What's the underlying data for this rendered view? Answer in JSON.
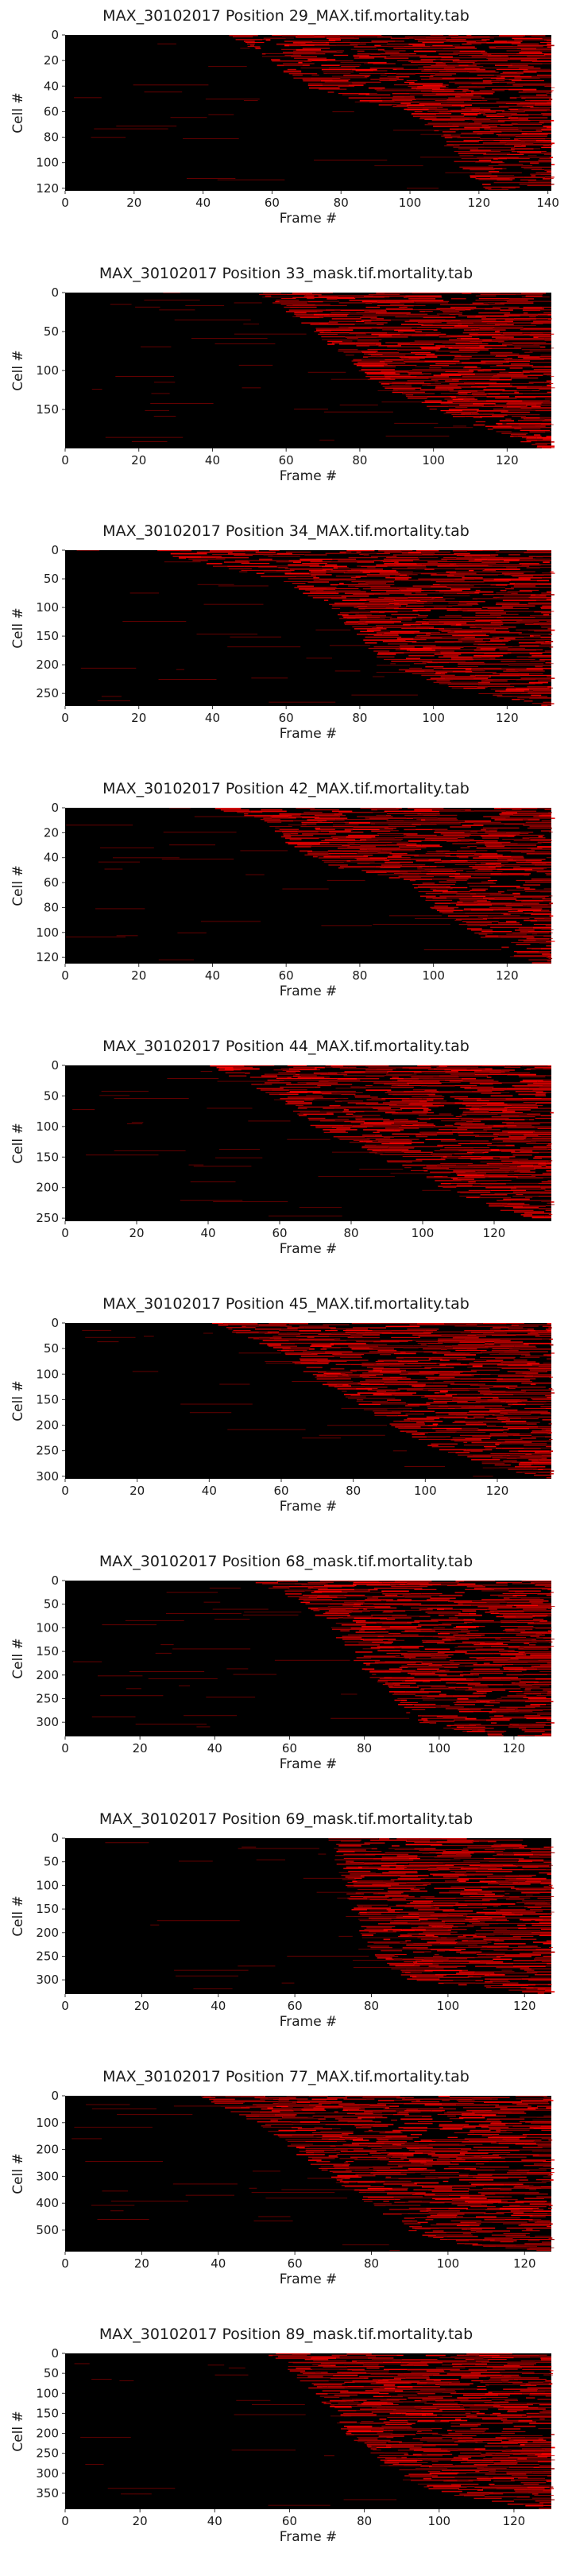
{
  "chart_data": [
    {
      "type": "heatmap",
      "title": "MAX_30102017 Position 29_MAX.tif.mortality.tab",
      "xlabel": "Frame #",
      "ylabel": "Cell #",
      "xlim": [
        0,
        141
      ],
      "ylim": [
        0,
        122
      ],
      "xticks": [
        0,
        20,
        40,
        60,
        80,
        100,
        120,
        140
      ],
      "yticks": [
        0,
        20,
        40,
        60,
        80,
        100,
        120
      ],
      "colormap": [
        "#000000",
        "#ff0000"
      ],
      "onset_curve": {
        "cell": [
          0,
          20,
          40,
          50,
          60,
          80,
          90,
          100,
          110,
          122
        ],
        "frame": [
          48,
          60,
          70,
          84,
          100,
          110,
          112,
          114,
          118,
          124
        ]
      }
    },
    {
      "type": "heatmap",
      "title": "MAX_30102017 Position 33_mask.tif.mortality.tab",
      "xlabel": "Frame #",
      "ylabel": "Cell #",
      "xlim": [
        0,
        132
      ],
      "ylim": [
        0,
        200
      ],
      "xticks": [
        0,
        20,
        40,
        60,
        80,
        100,
        120
      ],
      "yticks": [
        0,
        50,
        100,
        150
      ],
      "colormap": [
        "#000000",
        "#ff0000"
      ],
      "onset_curve": {
        "cell": [
          0,
          20,
          50,
          80,
          100,
          120,
          150,
          175,
          200
        ],
        "frame": [
          52,
          60,
          68,
          76,
          80,
          86,
          100,
          115,
          130
        ]
      }
    },
    {
      "type": "heatmap",
      "title": "MAX_30102017 Position 34_MAX.tif.mortality.tab",
      "xlabel": "Frame #",
      "ylabel": "Cell #",
      "xlim": [
        0,
        132
      ],
      "ylim": [
        0,
        272
      ],
      "xticks": [
        0,
        20,
        40,
        60,
        80,
        100,
        120
      ],
      "yticks": [
        0,
        50,
        100,
        150,
        200,
        250
      ],
      "colormap": [
        "#000000",
        "#ff0000"
      ],
      "onset_curve": {
        "cell": [
          0,
          20,
          40,
          60,
          100,
          150,
          200,
          240,
          272
        ],
        "frame": [
          20,
          35,
          50,
          62,
          72,
          80,
          88,
          105,
          130
        ]
      }
    },
    {
      "type": "heatmap",
      "title": "MAX_30102017 Position 42_MAX.tif.mortality.tab",
      "xlabel": "Frame #",
      "ylabel": "Cell #",
      "xlim": [
        0,
        132
      ],
      "ylim": [
        0,
        125
      ],
      "xticks": [
        0,
        20,
        40,
        60,
        80,
        100,
        120
      ],
      "yticks": [
        0,
        20,
        40,
        60,
        80,
        100,
        120
      ],
      "colormap": [
        "#000000",
        "#ff0000"
      ],
      "onset_curve": {
        "cell": [
          0,
          10,
          30,
          45,
          60,
          80,
          100,
          125
        ],
        "frame": [
          40,
          55,
          62,
          70,
          95,
          100,
          112,
          126
        ]
      }
    },
    {
      "type": "heatmap",
      "title": "MAX_30102017 Position 44_MAX.tif.mortality.tab",
      "xlabel": "Frame #",
      "ylabel": "Cell #",
      "xlim": [
        0,
        136
      ],
      "ylim": [
        0,
        255
      ],
      "xticks": [
        0,
        20,
        40,
        60,
        80,
        100,
        120
      ],
      "yticks": [
        0,
        50,
        100,
        150,
        200,
        250
      ],
      "colormap": [
        "#000000",
        "#ff0000"
      ],
      "onset_curve": {
        "cell": [
          0,
          30,
          60,
          100,
          150,
          180,
          200,
          230,
          255
        ],
        "frame": [
          40,
          52,
          62,
          70,
          88,
          100,
          106,
          118,
          134
        ]
      }
    },
    {
      "type": "heatmap",
      "title": "MAX_30102017 Position 45_MAX.tif.mortality.tab",
      "xlabel": "Frame #",
      "ylabel": "Cell #",
      "xlim": [
        0,
        135
      ],
      "ylim": [
        0,
        305
      ],
      "xticks": [
        0,
        20,
        40,
        60,
        80,
        100,
        120
      ],
      "yticks": [
        0,
        50,
        100,
        150,
        200,
        250,
        300
      ],
      "colormap": [
        "#000000",
        "#ff0000"
      ],
      "onset_curve": {
        "cell": [
          0,
          30,
          60,
          100,
          150,
          200,
          250,
          280,
          305
        ],
        "frame": [
          40,
          52,
          62,
          68,
          80,
          90,
          105,
          118,
          134
        ]
      }
    },
    {
      "type": "heatmap",
      "title": "MAX_30102017 Position 68_mask.tif.mortality.tab",
      "xlabel": "Frame #",
      "ylabel": "Cell #",
      "xlim": [
        0,
        130
      ],
      "ylim": [
        0,
        330
      ],
      "xticks": [
        0,
        20,
        40,
        60,
        80,
        100,
        120
      ],
      "yticks": [
        0,
        50,
        100,
        150,
        200,
        250,
        300
      ],
      "colormap": [
        "#000000",
        "#ff0000"
      ],
      "onset_curve": {
        "cell": [
          0,
          30,
          60,
          100,
          150,
          200,
          250,
          300,
          330
        ],
        "frame": [
          50,
          60,
          66,
          72,
          76,
          82,
          88,
          95,
          110
        ]
      }
    },
    {
      "type": "heatmap",
      "title": "MAX_30102017 Position 69_mask.tif.mortality.tab",
      "xlabel": "Frame #",
      "ylabel": "Cell #",
      "xlim": [
        0,
        127
      ],
      "ylim": [
        0,
        330
      ],
      "xticks": [
        0,
        20,
        40,
        60,
        80,
        100,
        120
      ],
      "yticks": [
        0,
        50,
        100,
        150,
        200,
        250,
        300
      ],
      "colormap": [
        "#000000",
        "#ff0000"
      ],
      "onset_curve": {
        "cell": [
          0,
          50,
          100,
          150,
          200,
          250,
          300,
          330
        ],
        "frame": [
          70,
          72,
          74,
          76,
          78,
          82,
          90,
          125
        ]
      }
    },
    {
      "type": "heatmap",
      "title": "MAX_30102017 Position 77_MAX.tif.mortality.tab",
      "xlabel": "Frame #",
      "ylabel": "Cell #",
      "xlim": [
        0,
        127
      ],
      "ylim": [
        0,
        580
      ],
      "xticks": [
        0,
        20,
        40,
        60,
        80,
        100,
        120
      ],
      "yticks": [
        0,
        100,
        200,
        300,
        400,
        500
      ],
      "colormap": [
        "#000000",
        "#ff0000"
      ],
      "onset_curve": {
        "cell": [
          0,
          50,
          100,
          200,
          300,
          400,
          500,
          550,
          580
        ],
        "frame": [
          35,
          42,
          50,
          60,
          70,
          80,
          90,
          100,
          126
        ]
      }
    },
    {
      "type": "heatmap",
      "title": "MAX_30102017 Position 89_mask.tif.mortality.tab",
      "xlabel": "Frame #",
      "ylabel": "Cell #",
      "xlim": [
        0,
        130
      ],
      "ylim": [
        0,
        390
      ],
      "xticks": [
        0,
        20,
        40,
        60,
        80,
        100,
        120
      ],
      "yticks": [
        0,
        50,
        100,
        150,
        200,
        250,
        300,
        350
      ],
      "colormap": [
        "#000000",
        "#ff0000"
      ],
      "onset_curve": {
        "cell": [
          0,
          50,
          100,
          150,
          200,
          250,
          300,
          350,
          390
        ],
        "frame": [
          55,
          62,
          68,
          72,
          76,
          82,
          90,
          100,
          128
        ]
      }
    }
  ]
}
